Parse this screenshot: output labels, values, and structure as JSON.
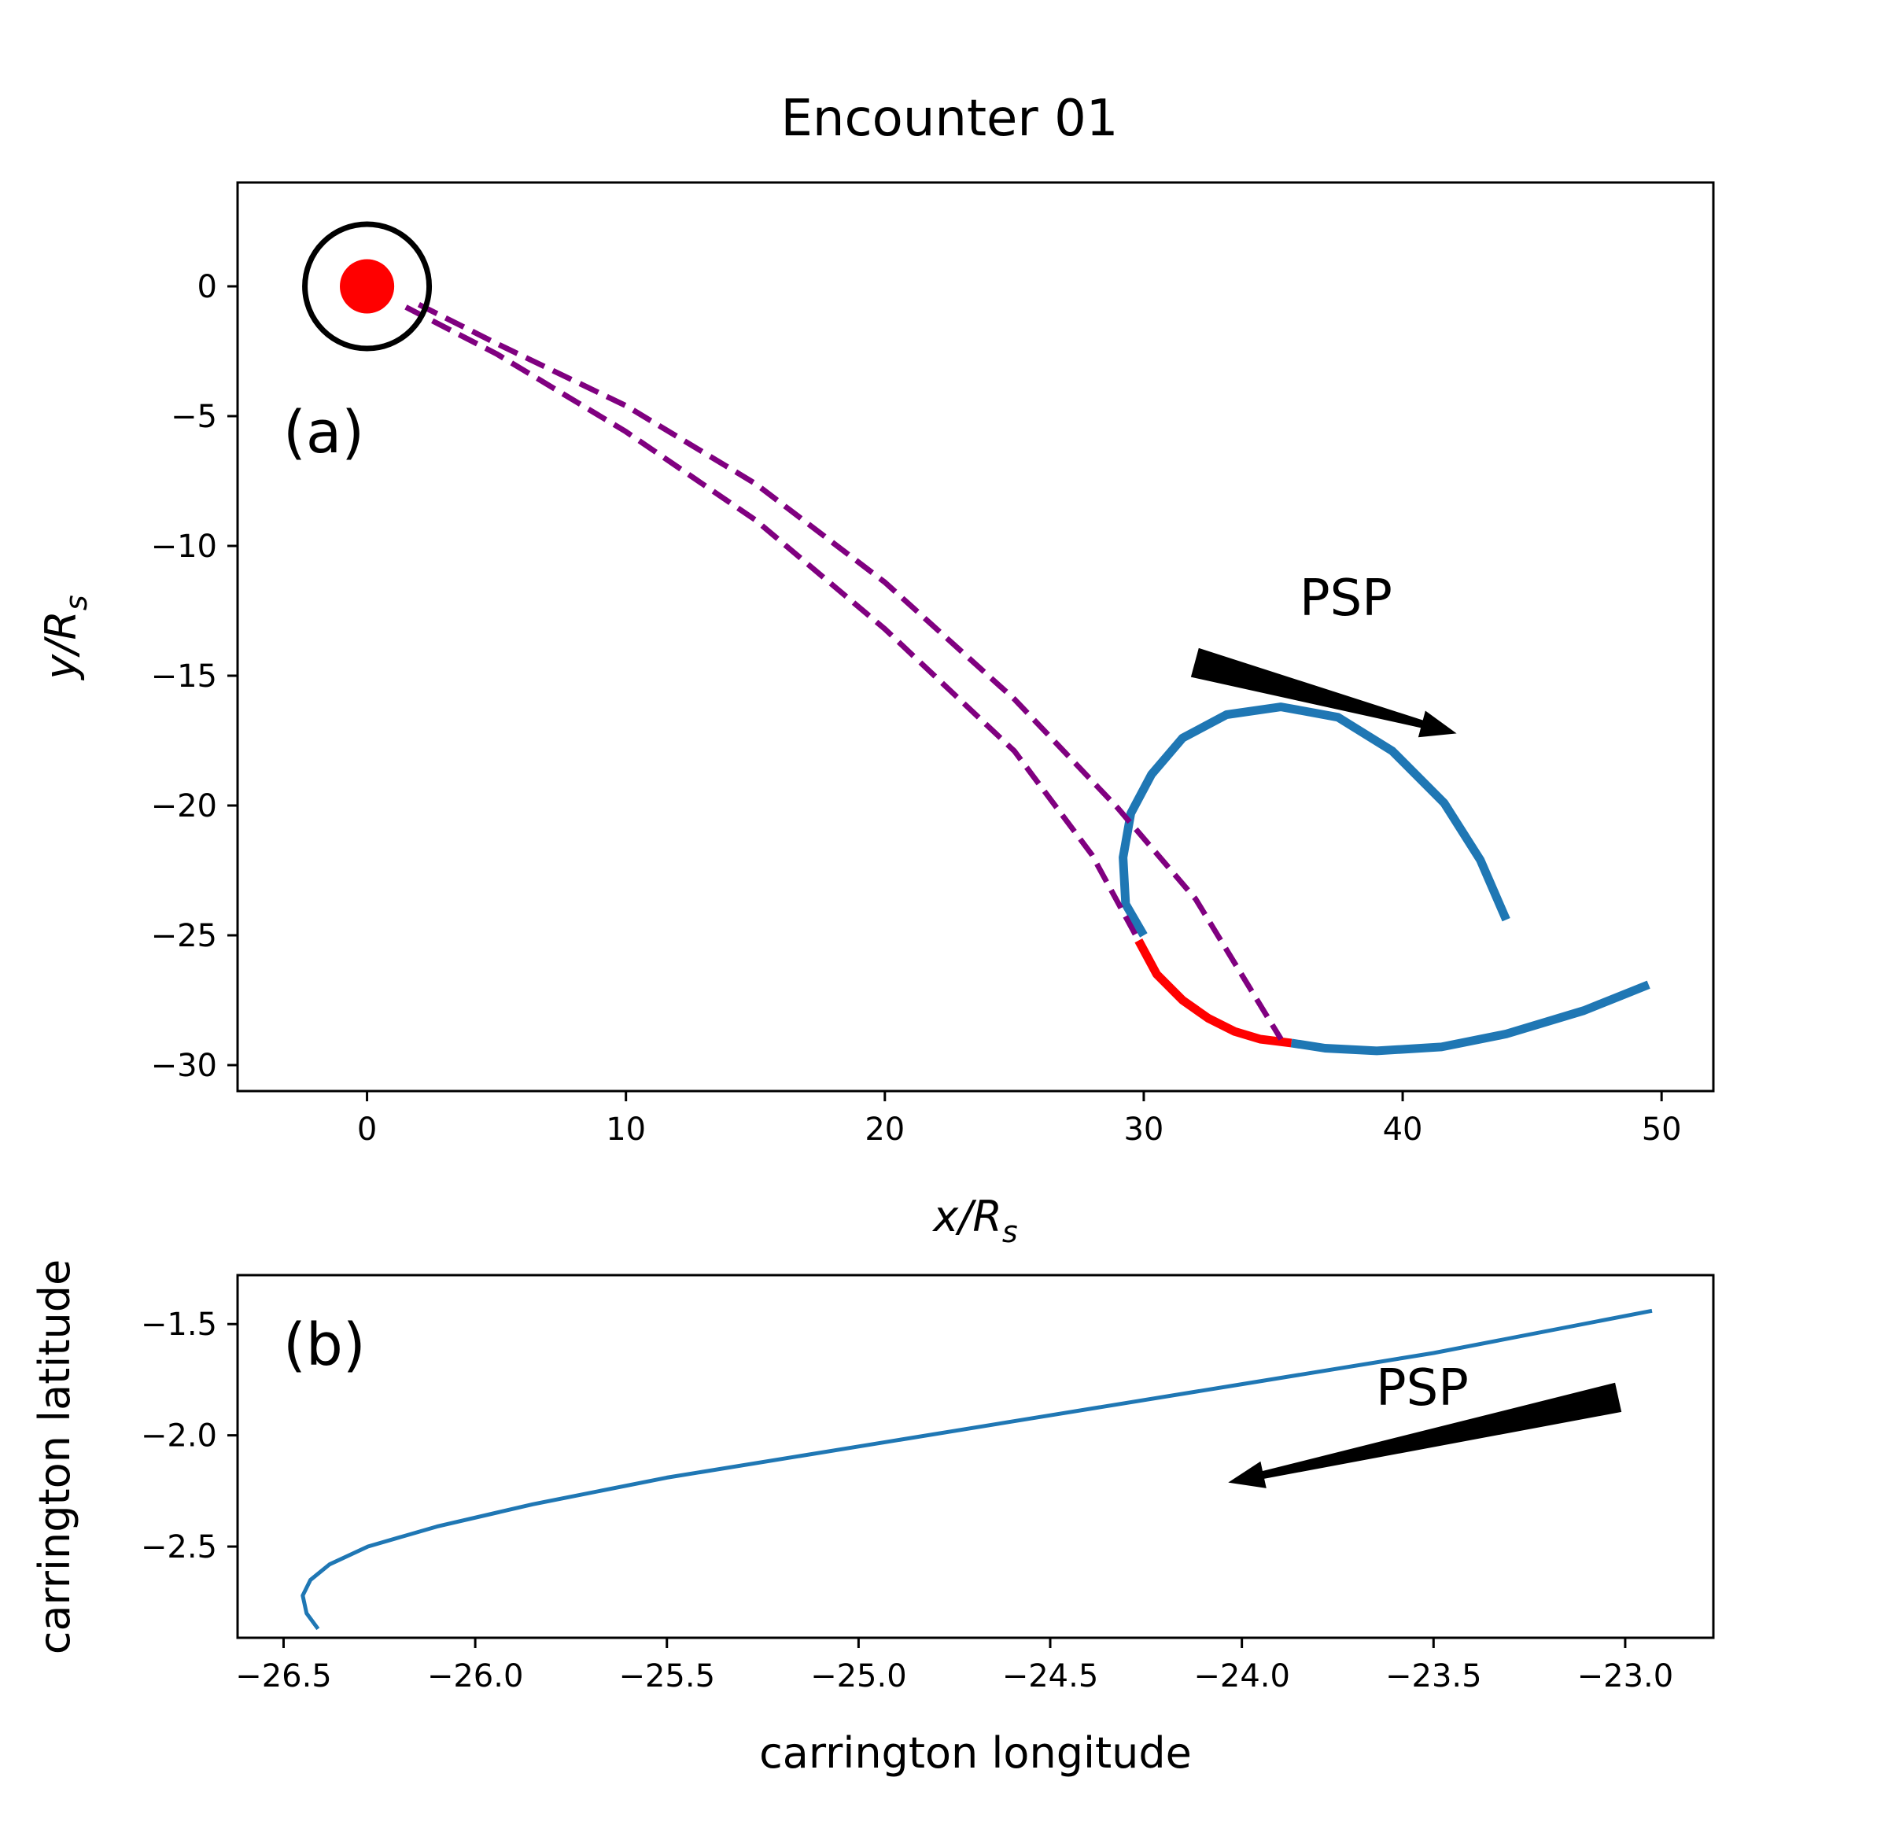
{
  "chart_data": [
    {
      "type": "line",
      "title": "Encounter 01",
      "panel_label": "(a)",
      "xlabel": "x/R",
      "xlabel_sub": "s",
      "ylabel": "y/R",
      "ylabel_sub": "s",
      "xlim": [
        -5,
        52
      ],
      "ylim": [
        -31,
        4
      ],
      "xticks": [
        0,
        10,
        20,
        30,
        40,
        50
      ],
      "xtick_labels": [
        "0",
        "10",
        "20",
        "30",
        "40",
        "50"
      ],
      "yticks": [
        0,
        -5,
        -10,
        -15,
        -20,
        -25,
        -30
      ],
      "ytick_labels": [
        "0",
        "−5",
        "−10",
        "−15",
        "−20",
        "−25",
        "−30"
      ],
      "sun": {
        "x": 0,
        "y": 0,
        "circle_radius": 2.4,
        "dot_radius": 1.05,
        "circle_color": "#000000",
        "dot_color": "#ff0000"
      },
      "series": [
        {
          "name": "PSP trajectory",
          "color": "#1f77b4",
          "style": "solid",
          "x": [
            49.5,
            47,
            44,
            41.5,
            39,
            37,
            35.7
          ],
          "y": [
            -26.9,
            -27.9,
            -28.8,
            -29.3,
            -29.45,
            -29.35,
            -29.15
          ]
        },
        {
          "name": "PSP trajectory (loop)",
          "color": "#1f77b4",
          "style": "solid",
          "x": [
            30,
            29.3,
            29.2,
            29.5,
            30.3,
            31.5,
            33.2,
            35.3,
            37.5,
            39.6,
            41.6,
            43.0,
            44.0
          ],
          "y": [
            -25,
            -23.8,
            -22.0,
            -20.3,
            -18.8,
            -17.4,
            -16.5,
            -16.2,
            -16.6,
            -17.9,
            -19.9,
            -22.1,
            -24.4
          ]
        },
        {
          "name": "Connected segment",
          "color": "#ff0000",
          "style": "solid",
          "x": [
            29.8,
            30.5,
            31.5,
            32.5,
            33.5,
            34.5,
            35.7
          ],
          "y": [
            -25.2,
            -26.5,
            -27.5,
            -28.2,
            -28.7,
            -29.0,
            -29.15
          ]
        },
        {
          "name": "Field line 1",
          "color": "#800080",
          "style": "dashed",
          "x": [
            1.5,
            5,
            10,
            15,
            20,
            25,
            28,
            29.8
          ],
          "y": [
            -0.8,
            -2.6,
            -5.6,
            -9.0,
            -13.2,
            -17.9,
            -21.9,
            -25.2
          ]
        },
        {
          "name": "Field line 2",
          "color": "#800080",
          "style": "dashed",
          "x": [
            2.0,
            5,
            10,
            15,
            20,
            25,
            29,
            32,
            35.3
          ],
          "y": [
            -0.7,
            -2.2,
            -4.6,
            -7.6,
            -11.4,
            -15.9,
            -20.1,
            -23.6,
            -29.0
          ]
        }
      ],
      "annotations": [
        {
          "text": "PSP",
          "x": 36.0,
          "y": -12.7
        },
        {
          "arrow": true,
          "from": [
            32.0,
            -14.5
          ],
          "to": [
            42.0,
            -17.2
          ],
          "direction": "right-down"
        }
      ]
    },
    {
      "type": "line",
      "panel_label": "(b)",
      "xlabel": "carrington longitude",
      "ylabel": "carrington latitude",
      "xlim": [
        -26.62,
        -22.77
      ],
      "ylim": [
        -2.91,
        -1.28
      ],
      "xticks": [
        -26.5,
        -26.0,
        -25.5,
        -25.0,
        -24.5,
        -24.0,
        -23.5,
        -23.0
      ],
      "xtick_labels": [
        "−26.5",
        "−26.0",
        "−25.5",
        "−25.0",
        "−24.5",
        "−24.0",
        "−23.5",
        "−23.0"
      ],
      "yticks": [
        -1.5,
        -2.0,
        -2.5
      ],
      "ytick_labels": [
        "−1.5",
        "−2.0",
        "−2.5"
      ],
      "series": [
        {
          "name": "PSP track",
          "color": "#1f77b4",
          "style": "solid",
          "x": [
            -26.41,
            -26.44,
            -26.45,
            -26.43,
            -26.38,
            -26.28,
            -26.1,
            -25.85,
            -25.5,
            -25.0,
            -24.5,
            -24.0,
            -23.5,
            -22.93
          ],
          "y": [
            -2.87,
            -2.8,
            -2.72,
            -2.65,
            -2.58,
            -2.5,
            -2.41,
            -2.31,
            -2.19,
            -2.05,
            -1.91,
            -1.77,
            -1.63,
            -1.44
          ]
        }
      ],
      "annotations": [
        {
          "text": "PSP",
          "x": -23.63,
          "y": -1.93
        },
        {
          "arrow": true,
          "from": [
            -23.02,
            -1.83
          ],
          "to": [
            -24.03,
            -2.21
          ],
          "direction": "left-down"
        }
      ]
    }
  ]
}
